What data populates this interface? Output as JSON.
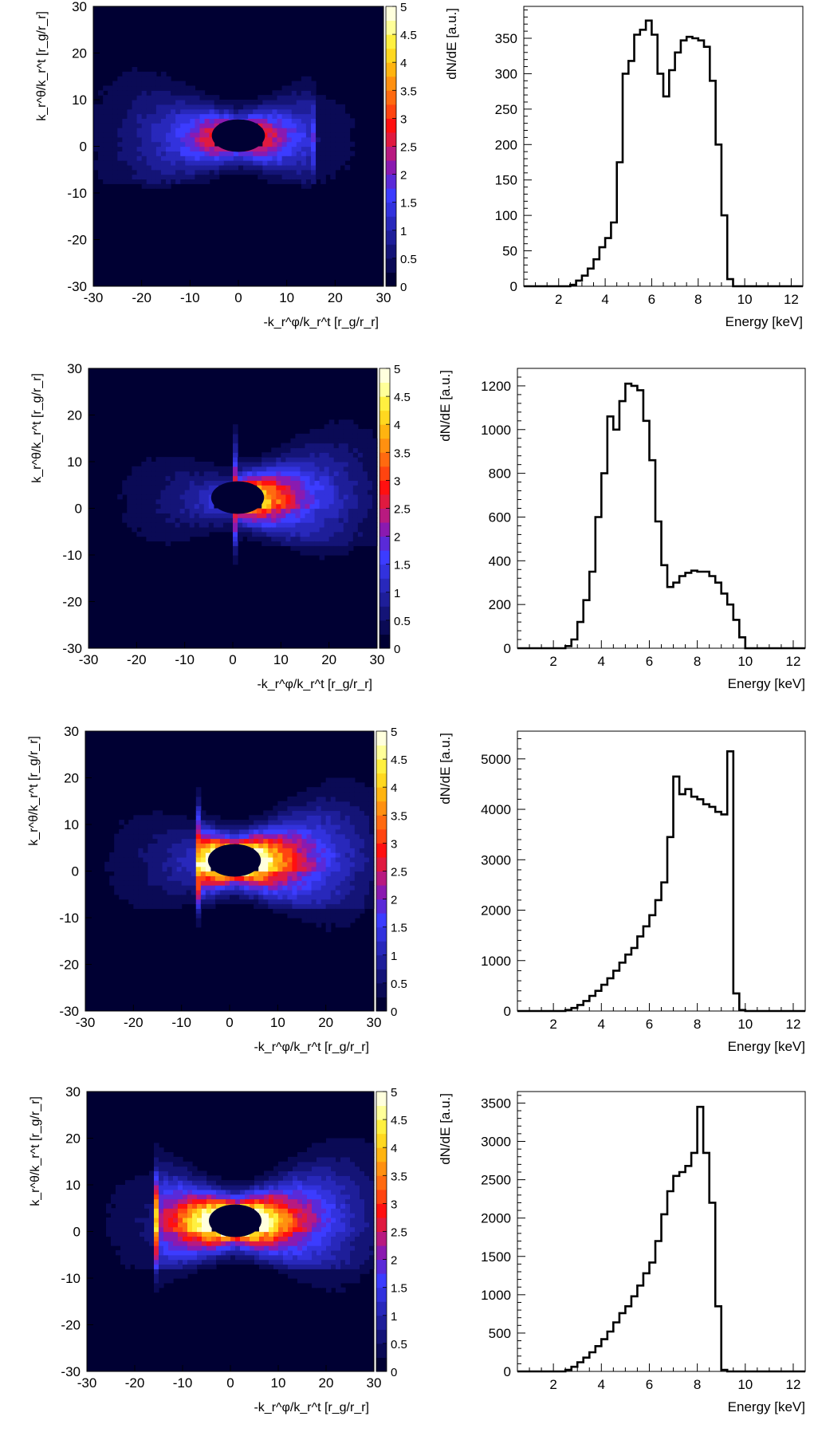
{
  "chart_data": [
    {
      "type": "heatmap",
      "xlabel": "-k_r^φ/k_r^t [r_g/r_r]",
      "ylabel": "k_r^θ/k_r^t [r_g/r_r]",
      "xlim": [
        -30,
        30
      ],
      "ylim": [
        -30,
        30
      ],
      "xticks": [
        "-30",
        "-20",
        "-10",
        "0",
        "10",
        "20",
        "30"
      ],
      "yticks": [
        "-30",
        "-20",
        "-10",
        "0",
        "10",
        "20",
        "30"
      ],
      "zlim": [
        0,
        5
      ],
      "colorbar_ticks": [
        "0",
        "0.5",
        "1",
        "1.5",
        "2",
        "2.5",
        "3",
        "3.5",
        "4",
        "4.5",
        "5"
      ],
      "cutoff_x": 15,
      "ring_center": [
        0,
        2
      ],
      "ring_radii": [
        5.5,
        3.5
      ],
      "peak_level": 2.8,
      "side": "left"
    },
    {
      "type": "bar",
      "xlabel": "Energy [keV]",
      "ylabel": "dN/dE [a.u.]",
      "xlim": [
        0.5,
        12.5
      ],
      "ylim": [
        0,
        395
      ],
      "xticks": [
        "2",
        "4",
        "6",
        "8",
        "10",
        "12"
      ],
      "yticks": [
        "0",
        "50",
        "100",
        "150",
        "200",
        "250",
        "300",
        "350"
      ],
      "bin_width": 0.25,
      "bin_start": 0.5,
      "values": [
        0,
        0,
        0,
        0,
        0,
        0,
        0,
        0,
        2,
        8,
        15,
        25,
        38,
        55,
        68,
        90,
        175,
        300,
        318,
        355,
        362,
        375,
        355,
        300,
        268,
        305,
        330,
        347,
        352,
        350,
        347,
        338,
        290,
        200,
        100,
        10,
        0,
        0,
        0,
        0,
        0,
        0,
        0,
        0,
        0,
        0,
        0,
        0
      ]
    },
    {
      "type": "heatmap",
      "xlabel": "-k_r^φ/k_r^t [r_g/r_r]",
      "ylabel": "k_r^θ/k_r^t [r_g/r_r]",
      "xlim": [
        -30,
        30
      ],
      "ylim": [
        -30,
        30
      ],
      "xticks": [
        "-30",
        "-20",
        "-10",
        "0",
        "10",
        "20",
        "30"
      ],
      "yticks": [
        "-30",
        "-20",
        "-10",
        "0",
        "10",
        "20",
        "30"
      ],
      "zlim": [
        0,
        5
      ],
      "colorbar_ticks": [
        "0",
        "0.5",
        "1",
        "1.5",
        "2",
        "2.5",
        "3",
        "3.5",
        "4",
        "4.5",
        "5"
      ],
      "cutoff_x": 0,
      "ring_center": [
        1,
        2
      ],
      "ring_radii": [
        5.5,
        3.5
      ],
      "peak_level": 3.6,
      "side": "right"
    },
    {
      "type": "bar",
      "xlabel": "Energy [keV]",
      "ylabel": "dN/dE [a.u.]",
      "xlim": [
        0.5,
        12.5
      ],
      "ylim": [
        0,
        1280
      ],
      "xticks": [
        "2",
        "4",
        "6",
        "8",
        "10",
        "12"
      ],
      "yticks": [
        "0",
        "200",
        "400",
        "600",
        "800",
        "1000",
        "1200"
      ],
      "bin_width": 0.25,
      "bin_start": 0.5,
      "values": [
        0,
        0,
        0,
        0,
        0,
        0,
        0,
        0,
        10,
        40,
        120,
        220,
        350,
        600,
        800,
        1060,
        1000,
        1130,
        1210,
        1200,
        1180,
        1040,
        860,
        580,
        380,
        280,
        300,
        330,
        345,
        355,
        350,
        350,
        330,
        300,
        250,
        200,
        130,
        50,
        0,
        0,
        0,
        0,
        0,
        0,
        0,
        0,
        0,
        0
      ]
    },
    {
      "type": "heatmap",
      "xlabel": "-k_r^φ/k_r^t [r_g/r_r]",
      "ylabel": "k_r^θ/k_r^t [r_g/r_r]",
      "xlim": [
        -30,
        30
      ],
      "ylim": [
        -30,
        30
      ],
      "xticks": [
        "-30",
        "-20",
        "-10",
        "0",
        "10",
        "20",
        "30"
      ],
      "yticks": [
        "-30",
        "-20",
        "-10",
        "0",
        "10",
        "20",
        "30"
      ],
      "zlim": [
        0,
        5
      ],
      "colorbar_ticks": [
        "0",
        "0.5",
        "1",
        "1.5",
        "2",
        "2.5",
        "3",
        "3.5",
        "4",
        "4.5",
        "5"
      ],
      "cutoff_x": -7,
      "ring_center": [
        1,
        2
      ],
      "ring_radii": [
        5.5,
        3.5
      ],
      "peak_level": 4.6,
      "side": "right"
    },
    {
      "type": "bar",
      "xlabel": "Energy [keV]",
      "ylabel": "dN/dE [a.u.]",
      "xlim": [
        0.5,
        12.5
      ],
      "ylim": [
        0,
        5550
      ],
      "xticks": [
        "2",
        "4",
        "6",
        "8",
        "10",
        "12"
      ],
      "yticks": [
        "0",
        "1000",
        "2000",
        "3000",
        "4000",
        "5000"
      ],
      "bin_width": 0.25,
      "bin_start": 0.5,
      "values": [
        0,
        0,
        0,
        0,
        0,
        0,
        0,
        0,
        20,
        60,
        120,
        200,
        300,
        400,
        520,
        650,
        800,
        960,
        1120,
        1250,
        1480,
        1680,
        1900,
        2200,
        2550,
        3450,
        4650,
        4300,
        4400,
        4250,
        4200,
        4100,
        4050,
        3950,
        3900,
        5150,
        350,
        20,
        0,
        0,
        0,
        0,
        0,
        0,
        0,
        0,
        0,
        0
      ]
    },
    {
      "type": "heatmap",
      "xlabel": "-k_r^φ/k_r^t [r_g/r_r]",
      "ylabel": "k_r^θ/k_r^t [r_g/r_r]",
      "xlim": [
        -30,
        30
      ],
      "ylim": [
        -30,
        30
      ],
      "xticks": [
        "-30",
        "-20",
        "-10",
        "0",
        "10",
        "20",
        "30"
      ],
      "yticks": [
        "-30",
        "-20",
        "-10",
        "0",
        "10",
        "20",
        "30"
      ],
      "zlim": [
        0,
        5
      ],
      "colorbar_ticks": [
        "0",
        "0.5",
        "1",
        "1.5",
        "2",
        "2.5",
        "3",
        "3.5",
        "4",
        "4.5",
        "5"
      ],
      "cutoff_x": -16,
      "ring_center": [
        1,
        2
      ],
      "ring_radii": [
        5.5,
        3.5
      ],
      "peak_level": 4.8,
      "side": "right"
    },
    {
      "type": "bar",
      "xlabel": "Energy [keV]",
      "ylabel": "dN/dE [a.u.]",
      "xlim": [
        0.5,
        12.5
      ],
      "ylim": [
        0,
        3650
      ],
      "xticks": [
        "2",
        "4",
        "6",
        "8",
        "10",
        "12"
      ],
      "yticks": [
        "0",
        "500",
        "1000",
        "1500",
        "2000",
        "2500",
        "3000",
        "3500"
      ],
      "bin_width": 0.25,
      "bin_start": 0.5,
      "values": [
        0,
        0,
        0,
        0,
        0,
        0,
        0,
        0,
        20,
        60,
        120,
        180,
        250,
        330,
        420,
        520,
        640,
        760,
        850,
        980,
        1120,
        1280,
        1420,
        1700,
        2050,
        2350,
        2550,
        2600,
        2680,
        2850,
        3450,
        2850,
        2200,
        850,
        20,
        0,
        0,
        0,
        0,
        0,
        0,
        0,
        0,
        0,
        0,
        0,
        0,
        0
      ]
    }
  ]
}
